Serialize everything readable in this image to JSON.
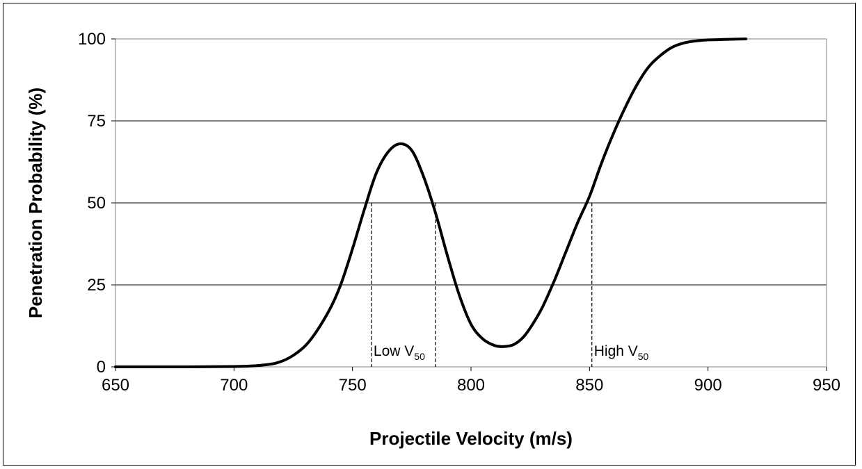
{
  "chart_data": {
    "type": "line",
    "title": "",
    "xlabel": "Projectile Velocity (m/s)",
    "ylabel": "Penetration Probability (%)",
    "xlim": [
      650,
      950
    ],
    "ylim": [
      0,
      100
    ],
    "x_ticks": [
      "650",
      "700",
      "750",
      "800",
      "850",
      "900",
      "950"
    ],
    "y_ticks": [
      "0",
      "25",
      "50",
      "75",
      "100"
    ],
    "grid": "horizontal",
    "legend": "none",
    "line_color": "#000000",
    "series": [
      {
        "x": [
          650,
          680,
          700,
          710,
          718,
          725,
          732,
          740,
          745,
          750,
          755,
          760,
          765,
          770,
          775,
          780,
          785,
          790,
          795,
          800,
          805,
          810,
          814,
          818,
          822,
          826,
          830,
          835,
          840,
          845,
          850,
          855,
          860,
          865,
          870,
          875,
          880,
          885,
          890,
          895,
          900,
          905,
          910,
          916
        ],
        "y": [
          0,
          0,
          0.1,
          0.4,
          1.2,
          3.5,
          8,
          17,
          25,
          36,
          48,
          59,
          65.5,
          68,
          66,
          58,
          47,
          34,
          22,
          13,
          8.5,
          6.5,
          6.2,
          6.8,
          9,
          13,
          18,
          26,
          35,
          44,
          52,
          62,
          71,
          79,
          86,
          91.5,
          95,
          97.5,
          98.8,
          99.4,
          99.7,
          99.8,
          99.9,
          100
        ]
      }
    ],
    "annotations": [
      {
        "type": "vline",
        "x": 758,
        "y_top": 50
      },
      {
        "type": "vline",
        "x": 785,
        "y_top": 50
      },
      {
        "type": "vline",
        "x": 851,
        "y_top": 50
      },
      {
        "label_main": "Low V",
        "label_sub": "50",
        "x": 758
      },
      {
        "label_main": "High V",
        "label_sub": "50",
        "x": 851
      }
    ]
  }
}
